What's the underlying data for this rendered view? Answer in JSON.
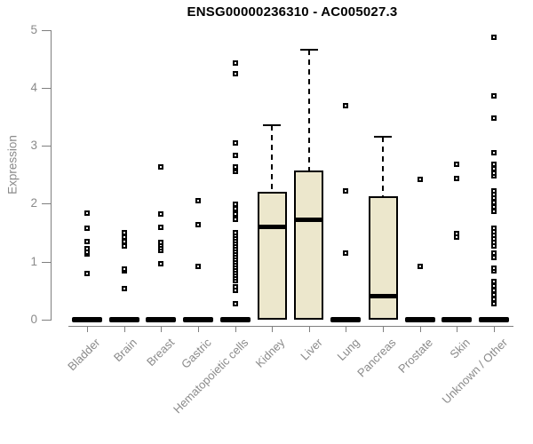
{
  "chart_data": {
    "type": "boxplot",
    "title": "ENSG00000236310 - AC005027.3",
    "ylabel": "Expression",
    "xlabel": "",
    "ylim": [
      0,
      5
    ],
    "yticks": [
      0,
      1,
      2,
      3,
      4,
      5
    ],
    "grid": false,
    "legend": "none",
    "axis_color": "#7f7f7f",
    "axis_text_color": "#8a8a8a",
    "box_fill_color": "#ece7cc",
    "box_stroke_color": "#000000",
    "categories": [
      "Bladder",
      "Brain",
      "Breast",
      "Gastric",
      "Hematopoietic cells",
      "Kidney",
      "Liver",
      "Lung",
      "Pancreas",
      "Prostate",
      "Skin",
      "Unknown / Other"
    ],
    "series": [
      {
        "category": "Bladder",
        "q1": 0,
        "median": 0,
        "q3": 0,
        "whisker_low": 0,
        "whisker_high": 0,
        "outliers": [
          0.8,
          1.13,
          1.17,
          1.22,
          1.35,
          1.58,
          1.84
        ]
      },
      {
        "category": "Brain",
        "q1": 0,
        "median": 0,
        "q3": 0,
        "whisker_low": 0,
        "whisker_high": 0,
        "outliers": [
          0.54,
          0.84,
          0.88,
          1.27,
          1.34,
          1.42,
          1.5
        ]
      },
      {
        "category": "Breast",
        "q1": 0,
        "median": 0,
        "q3": 0,
        "whisker_low": 0,
        "whisker_high": 0,
        "outliers": [
          0.96,
          1.19,
          1.24,
          1.28,
          1.33,
          1.59,
          1.82,
          2.63
        ]
      },
      {
        "category": "Gastric",
        "q1": 0,
        "median": 0,
        "q3": 0,
        "whisker_low": 0,
        "whisker_high": 0,
        "outliers": [
          0.92,
          1.64,
          2.05
        ]
      },
      {
        "category": "Hematopoietic cells",
        "q1": 0,
        "median": 0,
        "q3": 0,
        "whisker_low": 0,
        "whisker_high": 0,
        "outliers": [
          0.28,
          0.5,
          0.57,
          0.67,
          0.72,
          0.76,
          0.81,
          0.86,
          0.9,
          0.95,
          0.99,
          1.04,
          1.09,
          1.13,
          1.18,
          1.22,
          1.27,
          1.31,
          1.36,
          1.41,
          1.45,
          1.5,
          1.73,
          1.83,
          1.91,
          1.99,
          2.55,
          2.6,
          2.63,
          2.83,
          3.04,
          4.24,
          4.42
        ]
      },
      {
        "category": "Kidney",
        "q1": 0,
        "median": 1.6,
        "q3": 2.2,
        "whisker_low": 0,
        "whisker_high": 3.35,
        "outliers": []
      },
      {
        "category": "Liver",
        "q1": 0,
        "median": 1.73,
        "q3": 2.58,
        "whisker_low": 0,
        "whisker_high": 4.65,
        "outliers": []
      },
      {
        "category": "Lung",
        "q1": 0,
        "median": 0,
        "q3": 0,
        "whisker_low": 0,
        "whisker_high": 0,
        "outliers": [
          1.15,
          2.22,
          3.69
        ]
      },
      {
        "category": "Pancreas",
        "q1": 0,
        "median": 0.41,
        "q3": 2.13,
        "whisker_low": 0,
        "whisker_high": 3.15,
        "outliers": []
      },
      {
        "category": "Prostate",
        "q1": 0,
        "median": 0,
        "q3": 0,
        "whisker_low": 0,
        "whisker_high": 0,
        "outliers": [
          0.92,
          2.42
        ]
      },
      {
        "category": "Skin",
        "q1": 0,
        "median": 0,
        "q3": 0,
        "whisker_low": 0,
        "whisker_high": 0,
        "outliers": [
          1.42,
          1.48,
          2.43,
          2.68
        ]
      },
      {
        "category": "Unknown / Other",
        "q1": 0,
        "median": 0,
        "q3": 0,
        "whisker_low": 0,
        "whisker_high": 0,
        "outliers": [
          0.28,
          0.35,
          0.43,
          0.51,
          0.58,
          0.66,
          0.84,
          0.89,
          1.07,
          1.15,
          1.27,
          1.33,
          1.39,
          1.45,
          1.52,
          1.58,
          1.87,
          1.94,
          2.02,
          2.1,
          2.16,
          2.22,
          2.48,
          2.52,
          2.6,
          2.68,
          2.88,
          3.47,
          3.86,
          4.87
        ]
      }
    ]
  }
}
